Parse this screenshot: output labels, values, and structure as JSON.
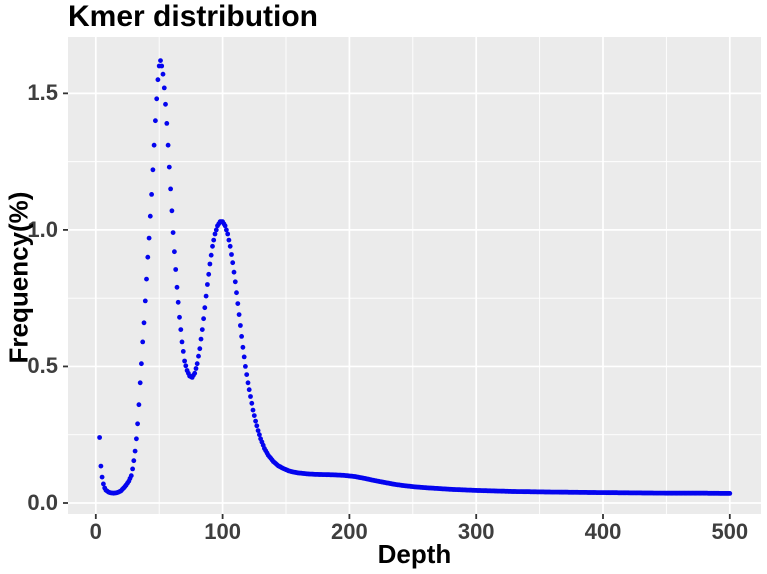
{
  "chart_data": {
    "type": "scatter",
    "title": "Kmer distribution",
    "xlabel": "Depth",
    "ylabel": "Frequency(%)",
    "legend": "none",
    "grid": "major-and-minor",
    "panel_background": "#EBEBEB",
    "gridline_color": "#FFFFFF",
    "point_color": "#0404EE",
    "title_color": "#000000",
    "tick_label_color": "#3e3e3e",
    "x_axis": {
      "label": "Depth",
      "ticks": [
        0,
        100,
        200,
        300,
        400,
        500
      ],
      "tick_labels": [
        "0",
        "100",
        "200",
        "300",
        "400",
        "500"
      ],
      "minor_ticks": [
        50,
        150,
        250,
        350,
        450
      ],
      "range": [
        0,
        500
      ]
    },
    "y_axis": {
      "label": "Frequency(%)",
      "ticks": [
        0,
        0.5,
        1.0,
        1.5
      ],
      "tick_labels": [
        "0.0",
        "0.5",
        "1.0",
        "1.5"
      ],
      "minor_ticks": [
        0.25,
        0.75,
        1.25
      ],
      "range": [
        0,
        1.7
      ]
    },
    "series": [
      {
        "name": "kmer-frequency",
        "point_spacing_depth": 1,
        "depth_start": 3,
        "depth_end": 500,
        "features": {
          "error_dip_min": [
            13,
            0.036
          ],
          "first_peak": [
            51,
            1.62
          ],
          "valley": [
            76,
            0.46
          ],
          "second_peak": [
            99,
            1.03
          ],
          "tail_shoulder": [
            195,
            0.1
          ],
          "tail_end": [
            500,
            0.035
          ]
        },
        "control_points": [
          [
            3,
            0.24
          ],
          [
            4,
            0.135
          ],
          [
            5,
            0.095
          ],
          [
            6,
            0.07
          ],
          [
            7,
            0.055
          ],
          [
            8,
            0.047
          ],
          [
            10,
            0.04
          ],
          [
            12,
            0.037
          ],
          [
            14,
            0.036
          ],
          [
            16,
            0.037
          ],
          [
            18,
            0.04
          ],
          [
            20,
            0.045
          ],
          [
            22,
            0.055
          ],
          [
            24,
            0.066
          ],
          [
            26,
            0.08
          ],
          [
            28,
            0.1
          ],
          [
            29,
            0.125
          ],
          [
            30,
            0.155
          ],
          [
            31,
            0.19
          ],
          [
            32,
            0.235
          ],
          [
            33,
            0.29
          ],
          [
            34,
            0.36
          ],
          [
            35,
            0.44
          ],
          [
            36,
            0.51
          ],
          [
            37,
            0.59
          ],
          [
            38,
            0.66
          ],
          [
            39,
            0.74
          ],
          [
            40,
            0.82
          ],
          [
            41,
            0.9
          ],
          [
            42,
            0.97
          ],
          [
            43,
            1.05
          ],
          [
            44,
            1.13
          ],
          [
            45,
            1.22
          ],
          [
            46,
            1.31
          ],
          [
            47,
            1.4
          ],
          [
            48,
            1.48
          ],
          [
            49,
            1.55
          ],
          [
            50,
            1.6
          ],
          [
            51,
            1.62
          ],
          [
            52,
            1.6
          ],
          [
            53,
            1.57
          ],
          [
            54,
            1.52
          ],
          [
            55,
            1.46
          ],
          [
            56,
            1.39
          ],
          [
            57,
            1.31
          ],
          [
            58,
            1.23
          ],
          [
            59,
            1.15
          ],
          [
            60,
            1.07
          ],
          [
            61,
            0.99
          ],
          [
            62,
            0.92
          ],
          [
            64,
            0.79
          ],
          [
            66,
            0.68
          ],
          [
            68,
            0.59
          ],
          [
            70,
            0.52
          ],
          [
            72,
            0.485
          ],
          [
            74,
            0.465
          ],
          [
            76,
            0.46
          ],
          [
            78,
            0.475
          ],
          [
            80,
            0.51
          ],
          [
            82,
            0.565
          ],
          [
            84,
            0.635
          ],
          [
            86,
            0.715
          ],
          [
            88,
            0.8
          ],
          [
            90,
            0.875
          ],
          [
            92,
            0.94
          ],
          [
            94,
            0.985
          ],
          [
            96,
            1.015
          ],
          [
            98,
            1.03
          ],
          [
            100,
            1.03
          ],
          [
            102,
            1.015
          ],
          [
            104,
            0.985
          ],
          [
            106,
            0.94
          ],
          [
            108,
            0.88
          ],
          [
            110,
            0.81
          ],
          [
            112,
            0.73
          ],
          [
            114,
            0.65
          ],
          [
            116,
            0.57
          ],
          [
            118,
            0.5
          ],
          [
            120,
            0.44
          ],
          [
            122,
            0.39
          ],
          [
            124,
            0.34
          ],
          [
            126,
            0.3
          ],
          [
            128,
            0.265
          ],
          [
            130,
            0.235
          ],
          [
            133,
            0.2
          ],
          [
            136,
            0.175
          ],
          [
            140,
            0.152
          ],
          [
            144,
            0.136
          ],
          [
            148,
            0.126
          ],
          [
            152,
            0.118
          ],
          [
            156,
            0.113
          ],
          [
            160,
            0.11
          ],
          [
            166,
            0.107
          ],
          [
            172,
            0.105
          ],
          [
            180,
            0.104
          ],
          [
            188,
            0.103
          ],
          [
            196,
            0.101
          ],
          [
            204,
            0.097
          ],
          [
            212,
            0.09
          ],
          [
            220,
            0.082
          ],
          [
            228,
            0.075
          ],
          [
            236,
            0.068
          ],
          [
            244,
            0.063
          ],
          [
            252,
            0.059
          ],
          [
            260,
            0.056
          ],
          [
            270,
            0.053
          ],
          [
            280,
            0.05
          ],
          [
            290,
            0.048
          ],
          [
            300,
            0.046
          ],
          [
            315,
            0.044
          ],
          [
            330,
            0.042
          ],
          [
            345,
            0.041
          ],
          [
            360,
            0.04
          ],
          [
            380,
            0.039
          ],
          [
            400,
            0.038
          ],
          [
            425,
            0.037
          ],
          [
            450,
            0.036
          ],
          [
            475,
            0.036
          ],
          [
            500,
            0.035
          ]
        ]
      }
    ]
  }
}
